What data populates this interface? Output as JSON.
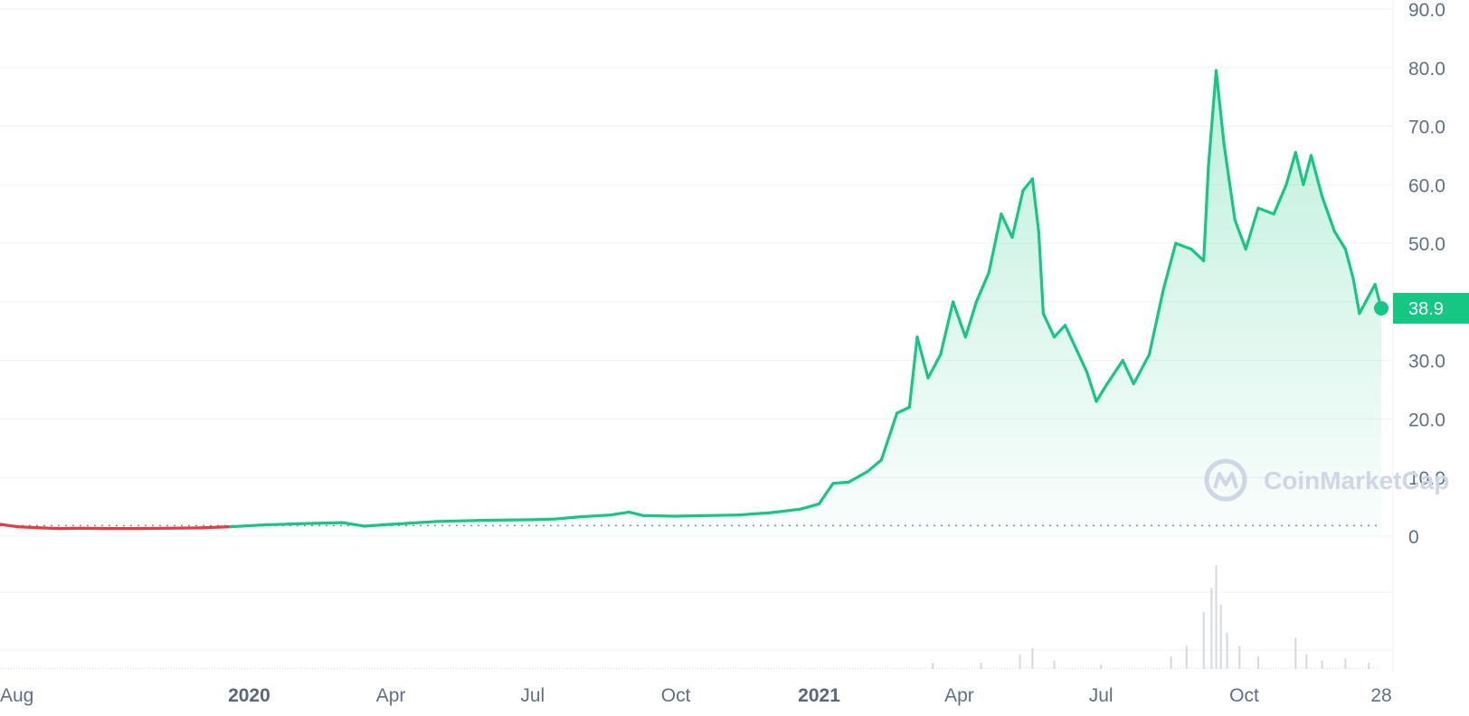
{
  "chart_data": {
    "type": "area",
    "title": "",
    "xlabel": "",
    "ylabel": "",
    "ylim": [
      0,
      90
    ],
    "y_ticks": [
      "90.0",
      "80.0",
      "70.0",
      "60.0",
      "50.0",
      "38.9",
      "30.0",
      "20.0",
      "10.0",
      "0"
    ],
    "current_price": "38.9",
    "watermark": "CoinMarketCap",
    "x_ticks": [
      {
        "label": "Aug",
        "date": "2019-08-01",
        "bold": false
      },
      {
        "label": "2020",
        "date": "2020-01-01",
        "bold": true
      },
      {
        "label": "Apr",
        "date": "2020-04-01",
        "bold": false
      },
      {
        "label": "Jul",
        "date": "2020-07-01",
        "bold": false
      },
      {
        "label": "Oct",
        "date": "2020-10-01",
        "bold": false
      },
      {
        "label": "2021",
        "date": "2021-01-01",
        "bold": true
      },
      {
        "label": "Apr",
        "date": "2021-04-01",
        "bold": false
      },
      {
        "label": "Jul",
        "date": "2021-07-01",
        "bold": false
      },
      {
        "label": "Oct",
        "date": "2021-10-01",
        "bold": false
      },
      {
        "label": "28",
        "date": "2021-12-28",
        "bold": false
      }
    ],
    "baseline_value": 1.8,
    "series": [
      {
        "color_up": "#16c784",
        "color_down": "#ea3943",
        "points": [
          [
            "2019-07-25",
            2.0
          ],
          [
            "2019-08-05",
            1.6
          ],
          [
            "2019-08-20",
            1.4
          ],
          [
            "2019-09-01",
            1.3
          ],
          [
            "2019-09-15",
            1.35
          ],
          [
            "2019-10-01",
            1.3
          ],
          [
            "2019-10-20",
            1.3
          ],
          [
            "2019-11-10",
            1.35
          ],
          [
            "2019-12-01",
            1.4
          ],
          [
            "2019-12-20",
            1.6
          ],
          [
            "2020-01-10",
            1.9
          ],
          [
            "2020-02-01",
            2.1
          ],
          [
            "2020-03-01",
            2.3
          ],
          [
            "2020-03-15",
            1.7
          ],
          [
            "2020-04-01",
            2.0
          ],
          [
            "2020-05-01",
            2.5
          ],
          [
            "2020-06-01",
            2.7
          ],
          [
            "2020-07-01",
            2.8
          ],
          [
            "2020-07-15",
            2.9
          ],
          [
            "2020-08-01",
            3.3
          ],
          [
            "2020-08-20",
            3.6
          ],
          [
            "2020-09-01",
            4.1
          ],
          [
            "2020-09-10",
            3.5
          ],
          [
            "2020-10-01",
            3.4
          ],
          [
            "2020-10-20",
            3.5
          ],
          [
            "2020-11-10",
            3.6
          ],
          [
            "2020-12-01",
            4.0
          ],
          [
            "2020-12-20",
            4.6
          ],
          [
            "2021-01-01",
            5.5
          ],
          [
            "2021-01-10",
            9.0
          ],
          [
            "2021-01-20",
            9.2
          ],
          [
            "2021-02-01",
            11.0
          ],
          [
            "2021-02-10",
            13.0
          ],
          [
            "2021-02-20",
            21.0
          ],
          [
            "2021-02-28",
            22.0
          ],
          [
            "2021-03-05",
            34.0
          ],
          [
            "2021-03-12",
            27.0
          ],
          [
            "2021-03-20",
            31.0
          ],
          [
            "2021-03-28",
            40.0
          ],
          [
            "2021-04-05",
            34.0
          ],
          [
            "2021-04-12",
            40.0
          ],
          [
            "2021-04-20",
            45.0
          ],
          [
            "2021-04-28",
            55.0
          ],
          [
            "2021-05-05",
            51.0
          ],
          [
            "2021-05-12",
            59.0
          ],
          [
            "2021-05-18",
            61.0
          ],
          [
            "2021-05-22",
            52.0
          ],
          [
            "2021-05-25",
            38.0
          ],
          [
            "2021-06-01",
            34.0
          ],
          [
            "2021-06-08",
            36.0
          ],
          [
            "2021-06-15",
            32.0
          ],
          [
            "2021-06-22",
            28.0
          ],
          [
            "2021-06-28",
            23.0
          ],
          [
            "2021-07-05",
            26.0
          ],
          [
            "2021-07-15",
            30.0
          ],
          [
            "2021-07-22",
            26.0
          ],
          [
            "2021-08-01",
            31.0
          ],
          [
            "2021-08-10",
            42.0
          ],
          [
            "2021-08-18",
            50.0
          ],
          [
            "2021-08-28",
            49.0
          ],
          [
            "2021-09-05",
            47.0
          ],
          [
            "2021-09-08",
            63.0
          ],
          [
            "2021-09-13",
            79.5
          ],
          [
            "2021-09-18",
            67.0
          ],
          [
            "2021-09-25",
            54.0
          ],
          [
            "2021-10-02",
            49.0
          ],
          [
            "2021-10-10",
            56.0
          ],
          [
            "2021-10-20",
            55.0
          ],
          [
            "2021-10-28",
            60.0
          ],
          [
            "2021-11-03",
            65.5
          ],
          [
            "2021-11-08",
            60.0
          ],
          [
            "2021-11-13",
            65.0
          ],
          [
            "2021-11-20",
            58.0
          ],
          [
            "2021-11-28",
            52.0
          ],
          [
            "2021-12-05",
            49.0
          ],
          [
            "2021-12-10",
            44.0
          ],
          [
            "2021-12-14",
            38.0
          ],
          [
            "2021-12-18",
            40.0
          ],
          [
            "2021-12-24",
            43.0
          ],
          [
            "2021-12-28",
            38.9
          ]
        ]
      }
    ],
    "volume_bars": [
      [
        "2021-03-15",
        0.06
      ],
      [
        "2021-04-15",
        0.06
      ],
      [
        "2021-05-10",
        0.14
      ],
      [
        "2021-05-18",
        0.2
      ],
      [
        "2021-06-01",
        0.08
      ],
      [
        "2021-07-01",
        0.04
      ],
      [
        "2021-08-15",
        0.12
      ],
      [
        "2021-08-25",
        0.22
      ],
      [
        "2021-09-05",
        0.55
      ],
      [
        "2021-09-10",
        0.78
      ],
      [
        "2021-09-13",
        1.0
      ],
      [
        "2021-09-16",
        0.62
      ],
      [
        "2021-09-20",
        0.35
      ],
      [
        "2021-09-28",
        0.22
      ],
      [
        "2021-10-10",
        0.12
      ],
      [
        "2021-11-03",
        0.3
      ],
      [
        "2021-11-10",
        0.14
      ],
      [
        "2021-11-20",
        0.08
      ],
      [
        "2021-12-05",
        0.1
      ],
      [
        "2021-12-20",
        0.06
      ]
    ]
  }
}
